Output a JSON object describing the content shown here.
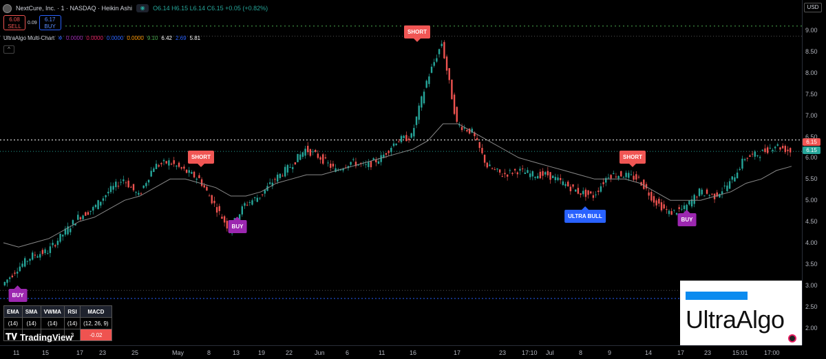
{
  "header": {
    "symbol_title": "NextCure, Inc. · 1 · NASDAQ · Heikin Ashi",
    "ohlc": "O6.14 H6.15 L6.14 C6.15 +0.05 (+0.82%)"
  },
  "trade": {
    "sell_price": "6.08",
    "sell_label": "SELL",
    "spread": "0.09",
    "buy_price": "6.17",
    "buy_label": "BUY"
  },
  "indicator": {
    "title": "UltraAlgo Multi-Chart",
    "values": [
      {
        "text": "0.0000",
        "color": "#9c27b0"
      },
      {
        "text": "0.0000",
        "color": "#e91e63"
      },
      {
        "text": "0.0000",
        "color": "#2962ff"
      },
      {
        "text": "0.0000",
        "color": "#ff9800"
      },
      {
        "text": "9.10",
        "color": "#4caf50"
      },
      {
        "text": "6.42",
        "color": "#ffffff"
      },
      {
        "text": "2.69",
        "color": "#2962ff"
      },
      {
        "text": "5.81",
        "color": "#ffffff"
      }
    ]
  },
  "currency": "USD",
  "price_axis": [
    "9.00",
    "8.50",
    "8.00",
    "7.50",
    "7.00",
    "6.50",
    "6.00",
    "5.50",
    "5.00",
    "4.50",
    "4.00",
    "3.50",
    "3.00",
    "2.50",
    "2.00"
  ],
  "price_tags": [
    {
      "text": "6.15",
      "color": "#f05654"
    },
    {
      "text": "6.15",
      "color": "#26a69a"
    }
  ],
  "time_axis": [
    "11",
    "15",
    "17",
    "23",
    "25",
    "May",
    "8",
    "13",
    "19",
    "22",
    "Jun",
    "6",
    "11",
    "16",
    "17",
    "23",
    "17:10",
    "Jul",
    "8",
    "9",
    "14",
    "17",
    "23",
    "15:01",
    "17:00"
  ],
  "signals": [
    {
      "label": "SHORT",
      "kind": "short"
    },
    {
      "label": "BUY",
      "kind": "buy"
    },
    {
      "label": "SHORT",
      "kind": "short"
    },
    {
      "label": "ULTRA BULL",
      "kind": "bull"
    },
    {
      "label": "SHORT",
      "kind": "short"
    },
    {
      "label": "BUY",
      "kind": "buy"
    },
    {
      "label": "BUY",
      "kind": "buy"
    }
  ],
  "table": {
    "headers": [
      "EMA",
      "SMA",
      "VWMA",
      "RSI",
      "MACD"
    ],
    "params": [
      "(14)",
      "(14)",
      "(14)",
      "(14)",
      "(12, 26, 9)"
    ],
    "last_row": [
      "",
      "",
      "",
      "3",
      "-0.02"
    ]
  },
  "branding": {
    "tradingview": "TradingView",
    "ultraalgo": "UltraAlgo"
  },
  "colors": {
    "up": "#26a69a",
    "down": "#ef5350",
    "short": "#f05654",
    "buy": "#9c27b0",
    "bull": "#2962ff"
  },
  "chart_data": {
    "type": "line",
    "title": "NextCure, Inc. · 1 · NASDAQ · Heikin Ashi",
    "xlabel": "",
    "ylabel": "",
    "ylim": [
      1.7,
      9.3
    ],
    "series": [
      {
        "values": [
          3.0,
          3.4,
          3.7,
          3.8,
          4.2,
          4.6,
          4.8,
          5.2,
          5.5,
          5.1,
          5.8,
          5.9,
          5.7,
          5.5,
          4.9,
          4.3,
          4.9,
          5.1,
          5.5,
          5.8,
          6.2,
          6.0,
          5.7,
          5.9,
          5.8,
          6.0,
          6.4,
          6.5,
          7.8,
          8.7,
          6.8,
          6.6,
          5.8,
          5.6,
          5.7,
          5.6,
          5.6,
          5.4,
          5.2,
          5.1,
          5.6,
          5.6,
          5.5,
          5.0,
          4.7,
          4.8,
          5.2,
          5.1,
          5.4,
          6.0,
          6.1,
          6.3,
          6.15
        ]
      },
      {
        "values": [
          4.0,
          3.9,
          4.0,
          4.1,
          4.3,
          4.5,
          4.6,
          4.8,
          5.0,
          5.1,
          5.3,
          5.5,
          5.5,
          5.4,
          5.3,
          5.1,
          5.1,
          5.2,
          5.4,
          5.5,
          5.6,
          5.6,
          5.7,
          5.8,
          5.9,
          6.0,
          6.1,
          6.2,
          6.4,
          6.8,
          6.8,
          6.6,
          6.4,
          6.2,
          6.0,
          5.9,
          5.8,
          5.7,
          5.6,
          5.5,
          5.5,
          5.5,
          5.4,
          5.2,
          5.0,
          5.0,
          5.0,
          5.1,
          5.2,
          5.4,
          5.5,
          5.7,
          5.8
        ]
      }
    ]
  }
}
